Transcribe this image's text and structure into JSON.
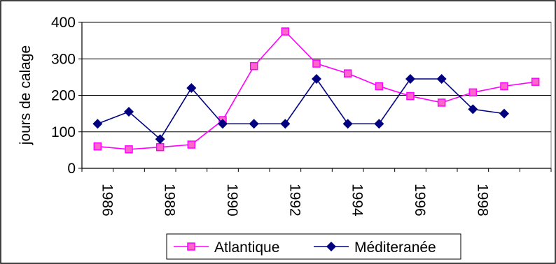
{
  "chart_data": {
    "type": "line",
    "ylabel": "jours de calage",
    "ylim": [
      0,
      400
    ],
    "yticks": [
      0,
      100,
      200,
      300,
      400
    ],
    "x": [
      1986,
      1987,
      1988,
      1989,
      1990,
      1991,
      1992,
      1993,
      1994,
      1995,
      1996,
      1997,
      1998,
      1999,
      2000
    ],
    "xtick_labels": [
      "1986",
      "1988",
      "1990",
      "1992",
      "1994",
      "1996",
      "1998"
    ],
    "xtick_values": [
      1986,
      1988,
      1990,
      1992,
      1994,
      1996,
      1998
    ],
    "grid": "horizontal",
    "legend_position": "bottom",
    "series": [
      {
        "name": "Atlantique",
        "color": "#ff00ff",
        "marker": "square",
        "x": [
          1986,
          1987,
          1988,
          1989,
          1990,
          1991,
          1992,
          1993,
          1994,
          1995,
          1996,
          1997,
          1998,
          1999,
          2000
        ],
        "values": [
          60,
          52,
          58,
          65,
          132,
          280,
          375,
          287,
          260,
          225,
          198,
          180,
          208,
          225,
          237
        ]
      },
      {
        "name": "Méditeranée",
        "color": "#000080",
        "marker": "diamond",
        "x": [
          1986,
          1987,
          1988,
          1989,
          1990,
          1991,
          1992,
          1993,
          1994,
          1995,
          1996,
          1997,
          1998,
          1999
        ],
        "values": [
          122,
          155,
          80,
          220,
          122,
          122,
          122,
          245,
          122,
          122,
          245,
          245,
          162,
          150
        ]
      }
    ]
  }
}
